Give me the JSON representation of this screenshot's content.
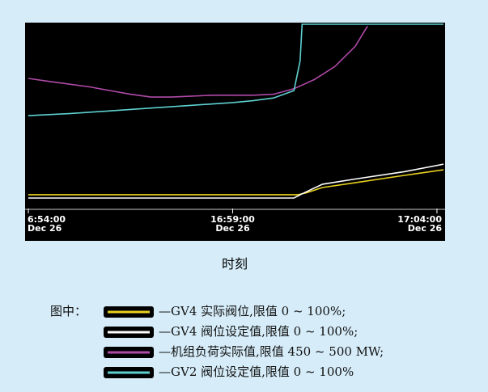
{
  "chart_data": {
    "type": "line",
    "x_label": "时刻",
    "legend_title": "图中：",
    "xlim": [
      -0.04,
      10.16
    ],
    "ylim": [
      0,
      100
    ],
    "xticks": [
      {
        "value": 0,
        "label": "6:54:00\nDec 26"
      },
      {
        "value": 5,
        "label": "16:59:00\nDec 26"
      },
      {
        "value": 10,
        "label": "17:04:00\nDec 26"
      }
    ],
    "series": [
      {
        "name": "—GV4 实际阀位,限值 0 ~ 100%;",
        "color": "#e8d020",
        "x": [
          0,
          6.6,
          6.8,
          7.2,
          8,
          9.2,
          10.16
        ],
        "values": [
          7.5,
          7.5,
          8.5,
          11.4,
          14,
          18,
          21
        ]
      },
      {
        "name": "—GV4 阀位设定值,限值 0 ~ 100%;",
        "color": "#ffffff",
        "x": [
          0,
          6.5,
          6.7,
          7.2,
          8,
          9.2,
          10.16
        ],
        "values": [
          5.7,
          5.7,
          8,
          13.2,
          16,
          20,
          24.1
        ]
      },
      {
        "name": "—机组负荷实际值,限值 450 ~ 500 MW;",
        "color": "#b04aa8",
        "x": [
          0,
          0.5,
          1,
          1.5,
          2,
          2.5,
          3,
          3.5,
          4,
          4.5,
          5,
          5.5,
          6,
          6.5,
          7,
          7.5,
          8,
          8.3
        ],
        "values": [
          70.6,
          69,
          67.5,
          66,
          64,
          62,
          60.5,
          60.5,
          61,
          61.5,
          61.5,
          61.5,
          62,
          65,
          70,
          77,
          88,
          99
        ]
      },
      {
        "name": "—GV2 阀位设定值,限值 0 ~ 100%",
        "color": "#5ed0d0",
        "x": [
          0,
          1,
          2,
          3,
          4,
          5,
          5.5,
          6,
          6.5,
          6.65,
          6.7,
          10.16
        ],
        "values": [
          50.4,
          51.5,
          53,
          54.5,
          56,
          57.5,
          58.5,
          60,
          64,
          80,
          100,
          100
        ]
      }
    ]
  }
}
